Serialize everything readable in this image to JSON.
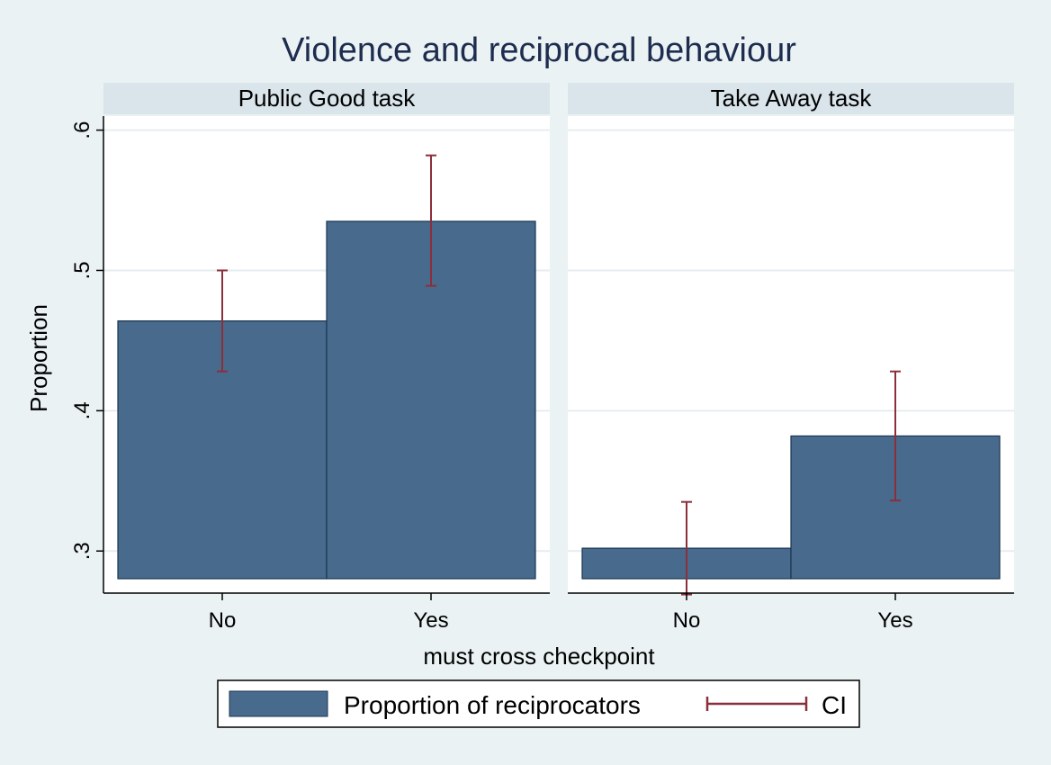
{
  "chart_data": {
    "type": "bar",
    "title": "Violence and reciprocal behaviour",
    "xlabel": "must cross checkpoint",
    "ylabel": "Proportion",
    "ylim": [
      0.27,
      0.61
    ],
    "yticks": [
      0.3,
      0.4,
      0.5,
      0.6
    ],
    "ytick_labels": [
      ".3",
      ".4",
      ".5",
      ".6"
    ],
    "grid": true,
    "legend_position": "bottom",
    "legend": [
      {
        "label": "Proportion of reciprocators",
        "kind": "bar"
      },
      {
        "label": "CI",
        "kind": "errorbar"
      }
    ],
    "categories": [
      "No",
      "Yes"
    ],
    "panels": [
      {
        "name": "Public Good task",
        "values": [
          0.464,
          0.535
        ],
        "ci_low": [
          0.428,
          0.489
        ],
        "ci_high": [
          0.5,
          0.582
        ]
      },
      {
        "name": "Take Away task",
        "values": [
          0.302,
          0.382
        ],
        "ci_low": [
          0.269,
          0.336
        ],
        "ci_high": [
          0.335,
          0.428
        ]
      }
    ],
    "colors": {
      "bar_fill": "#486a8c",
      "bar_edge": "#1a3550",
      "ci": "#8b2f3b",
      "panel_header": "#d9e5eb",
      "plot_bg": "#ffffff",
      "page_bg": "#eaf2f3",
      "grid": "#e6eef0",
      "title": "#1e2d4f"
    }
  }
}
